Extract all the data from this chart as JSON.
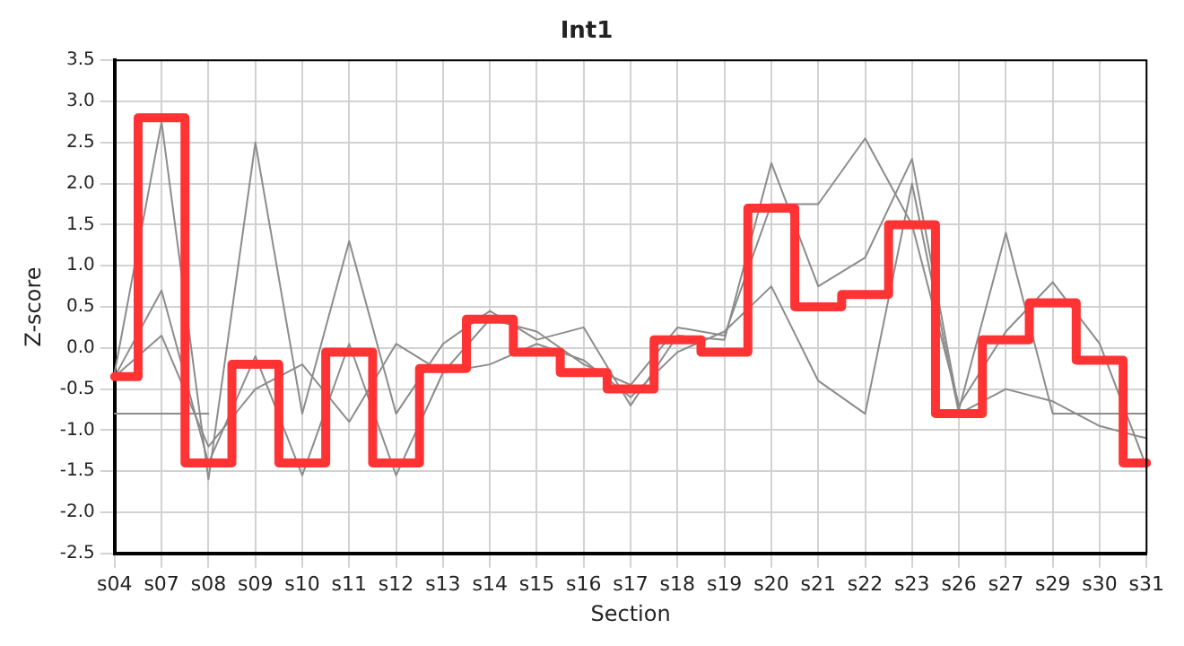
{
  "chart_data": {
    "type": "line",
    "title": "Int1",
    "xlabel": "Section",
    "ylabel": "Z-score",
    "categories": [
      "s04",
      "s07",
      "s08",
      "s09",
      "s10",
      "s11",
      "s12",
      "s13",
      "s14",
      "s15",
      "s16",
      "s17",
      "s18",
      "s19",
      "s20",
      "s21",
      "s22",
      "s23",
      "s26",
      "s27",
      "s29",
      "s30",
      "s31"
    ],
    "series": [
      {
        "type": "line",
        "color": "#8c8c8c",
        "values": [
          -0.3,
          2.75,
          -1.6,
          2.5,
          -0.8,
          1.3,
          -0.8,
          0.05,
          0.45,
          0.1,
          0.25,
          -0.7,
          0.15,
          0.1,
          2.25,
          0.75,
          1.1,
          2.3,
          -0.75,
          1.4,
          -0.8,
          -0.8,
          -0.8
        ]
      },
      {
        "type": "line",
        "color": "#8c8c8c",
        "values": [
          -0.35,
          0.7,
          -1.4,
          -0.1,
          -1.55,
          0.05,
          -1.55,
          -0.3,
          0.35,
          0.2,
          -0.2,
          -0.45,
          0.25,
          0.15,
          1.75,
          1.75,
          2.55,
          1.5,
          -0.7,
          0.2,
          0.8,
          0.05,
          -1.45
        ]
      },
      {
        "type": "line",
        "color": "#8c8c8c",
        "values": [
          -0.35,
          0.15,
          -1.2,
          -0.5,
          -0.2,
          -0.9,
          0.05,
          -0.3,
          -0.2,
          0.05,
          -0.15,
          -0.6,
          -0.05,
          0.2,
          0.75,
          -0.4,
          -0.8,
          2.0,
          -0.8,
          -0.5,
          -0.65,
          -0.95,
          -1.1
        ]
      },
      {
        "type": "line",
        "color": "#8c8c8c",
        "values": [
          -0.8,
          -0.8,
          -0.8,
          null,
          null,
          null,
          null,
          null,
          null,
          null,
          null,
          null,
          null,
          null,
          null,
          null,
          null,
          null,
          null,
          null,
          null,
          null,
          null
        ]
      },
      {
        "type": "step",
        "color": "#ff3333",
        "values": [
          -0.35,
          2.8,
          -1.4,
          -0.2,
          -1.4,
          -0.05,
          -1.4,
          -0.25,
          0.35,
          -0.05,
          -0.3,
          -0.5,
          0.1,
          -0.05,
          1.7,
          0.5,
          0.65,
          1.5,
          -0.8,
          0.1,
          0.55,
          -0.15,
          -1.4
        ]
      }
    ],
    "ylim": [
      -2.5,
      3.5
    ],
    "yticks": [
      {
        "value": -2.5,
        "label": "-2.5"
      },
      {
        "value": -2,
        "label": "-2.0"
      },
      {
        "value": -1.5,
        "label": "-1.5"
      },
      {
        "value": -1,
        "label": "-1.0"
      },
      {
        "value": -0.5,
        "label": "-0.5"
      },
      {
        "value": 0,
        "label": "0.0"
      },
      {
        "value": 0.5,
        "label": "0.5"
      },
      {
        "value": 1,
        "label": "1.0"
      },
      {
        "value": 1.5,
        "label": "1.5"
      },
      {
        "value": 2,
        "label": "2.0"
      },
      {
        "value": 2.5,
        "label": "2.5"
      },
      {
        "value": 3,
        "label": "3.0"
      },
      {
        "value": 3.5,
        "label": "3.5"
      }
    ],
    "grid": true,
    "legend": false,
    "marker": "none"
  }
}
